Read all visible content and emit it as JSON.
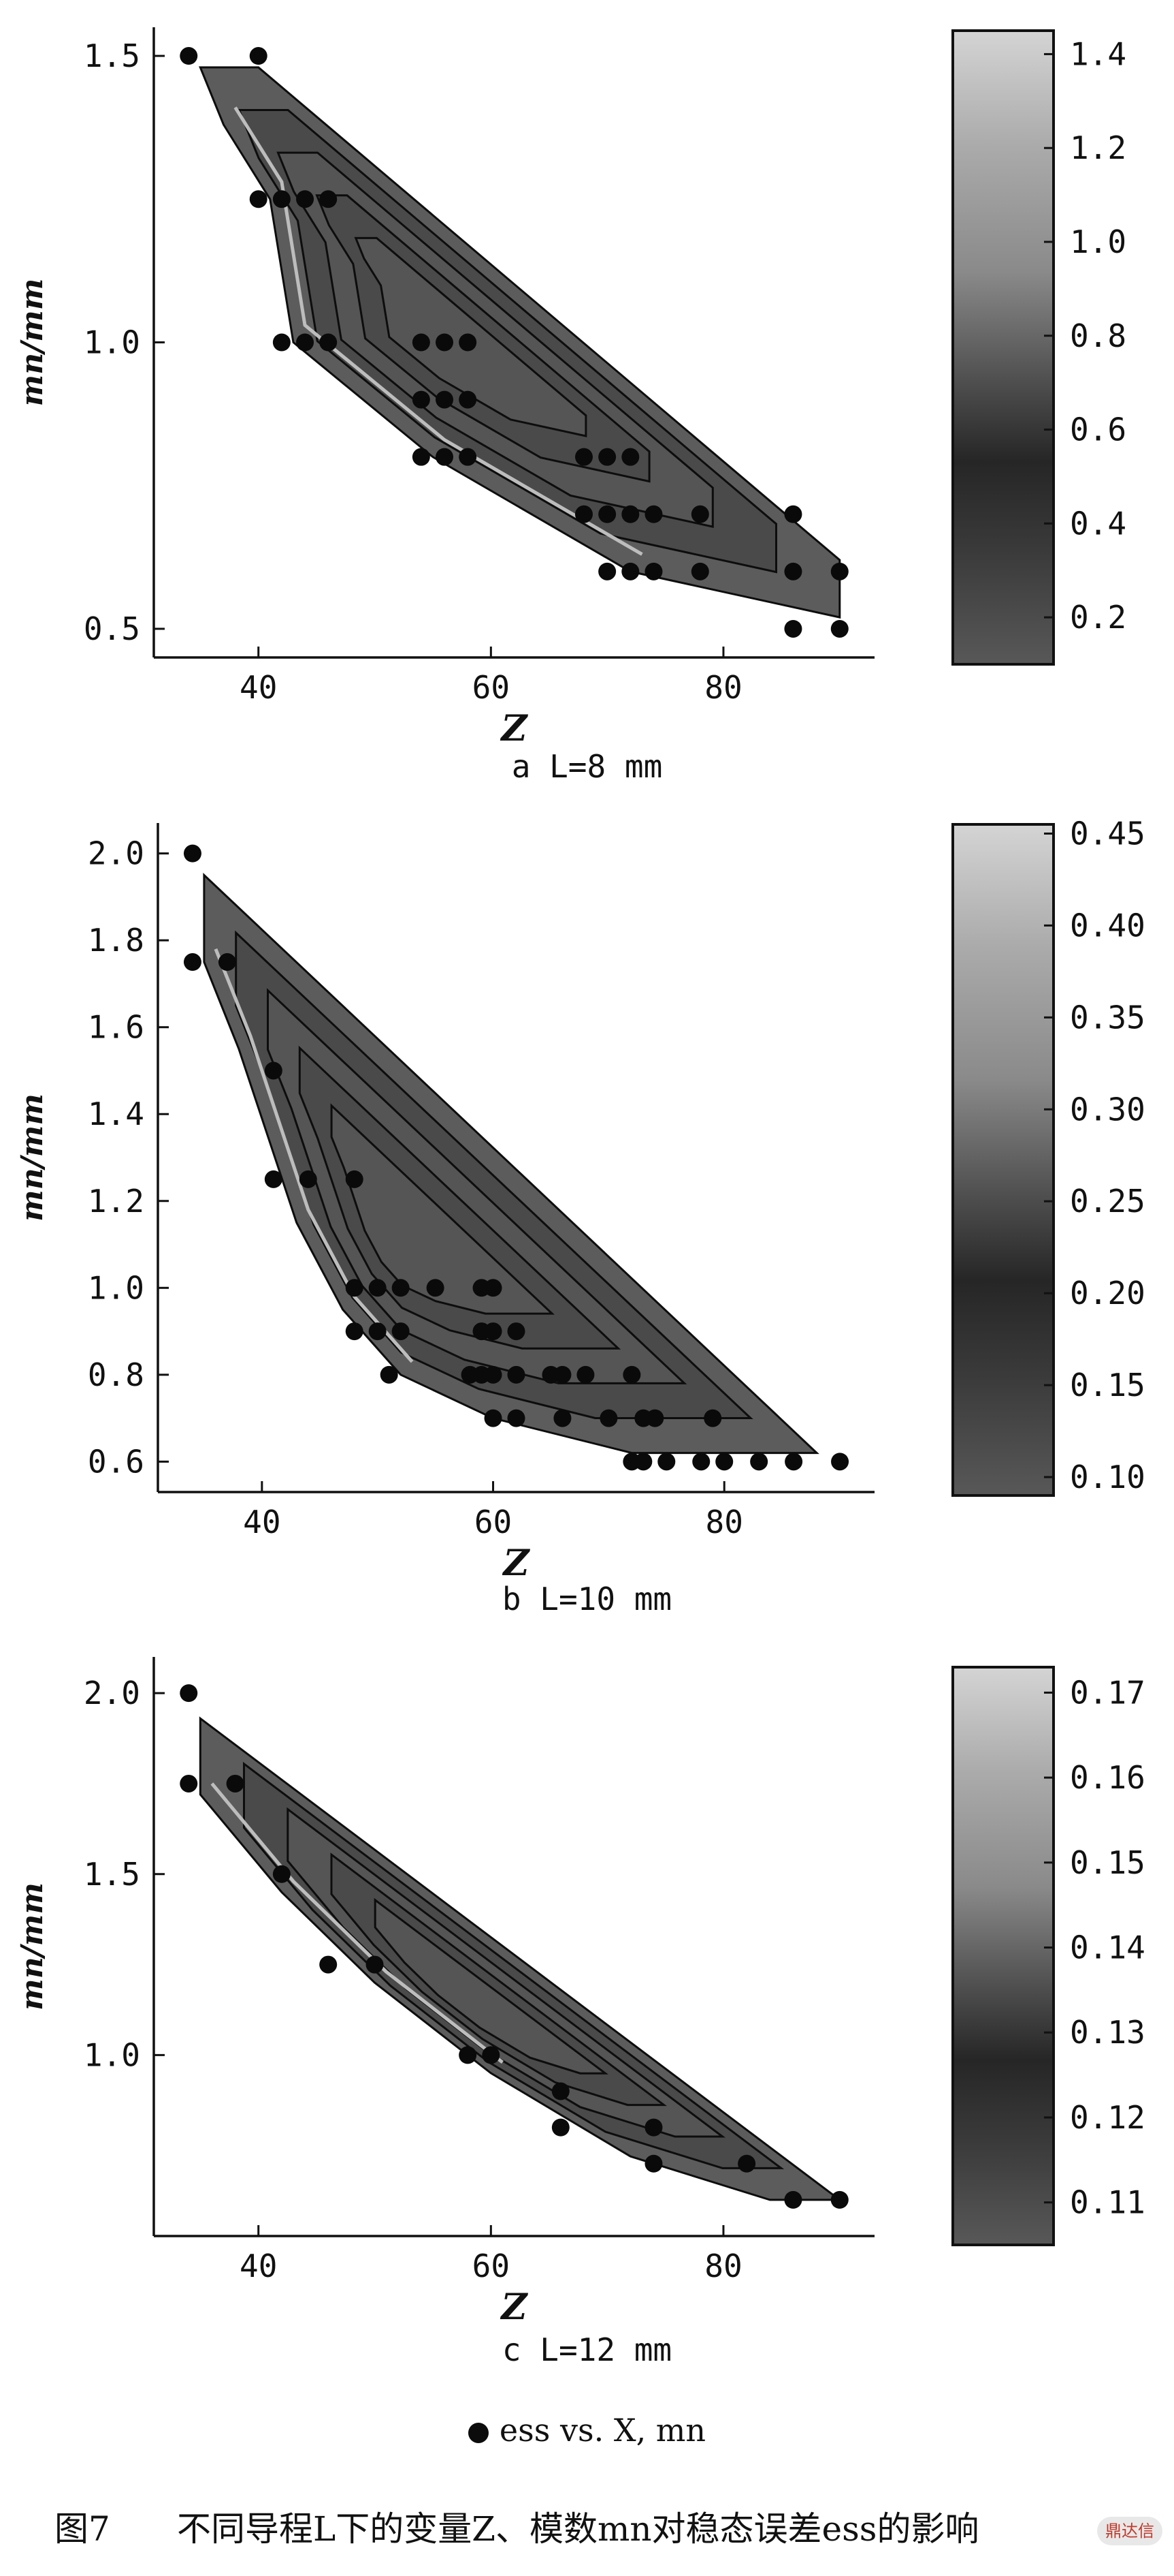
{
  "chart_data": [
    {
      "type": "contour",
      "panel": "a",
      "caption": "a L=8 mm",
      "xlabel": "Z",
      "ylabel": "mn/mm",
      "x_ticks": [
        "40",
        "60",
        "80"
      ],
      "y_ticks": [
        "0.5",
        "1.0",
        "1.5"
      ],
      "xlim": [
        31,
        93
      ],
      "ylim": [
        0.45,
        1.55
      ],
      "colorbar_ticks": [
        "0.2",
        "0.4",
        "0.6",
        "0.8",
        "1.0",
        "1.2",
        "1.4"
      ],
      "colorbar_range": [
        0.1,
        1.45
      ],
      "region": [
        [
          35,
          1.48
        ],
        [
          40,
          1.48
        ],
        [
          90,
          0.62
        ],
        [
          90,
          0.52
        ],
        [
          72,
          0.6
        ],
        [
          55,
          0.8
        ],
        [
          43,
          1.0
        ],
        [
          41,
          1.25
        ],
        [
          37,
          1.38
        ]
      ],
      "points": [
        [
          34,
          1.5
        ],
        [
          40,
          1.5
        ],
        [
          40,
          1.25
        ],
        [
          42,
          1.25
        ],
        [
          44,
          1.25
        ],
        [
          46,
          1.25
        ],
        [
          42,
          1.0
        ],
        [
          44,
          1.0
        ],
        [
          46,
          1.0
        ],
        [
          54,
          1.0
        ],
        [
          56,
          1.0
        ],
        [
          58,
          1.0
        ],
        [
          54,
          0.9
        ],
        [
          56,
          0.9
        ],
        [
          58,
          0.9
        ],
        [
          54,
          0.8
        ],
        [
          56,
          0.8
        ],
        [
          58,
          0.8
        ],
        [
          68,
          0.8
        ],
        [
          70,
          0.8
        ],
        [
          72,
          0.8
        ],
        [
          68,
          0.7
        ],
        [
          70,
          0.7
        ],
        [
          72,
          0.7
        ],
        [
          74,
          0.7
        ],
        [
          78,
          0.7
        ],
        [
          86,
          0.7
        ],
        [
          70,
          0.6
        ],
        [
          72,
          0.6
        ],
        [
          74,
          0.6
        ],
        [
          78,
          0.6
        ],
        [
          86,
          0.6
        ],
        [
          90,
          0.6
        ],
        [
          86,
          0.5
        ],
        [
          90,
          0.5
        ]
      ]
    },
    {
      "type": "contour",
      "panel": "b",
      "caption": "b L=10 mm",
      "xlabel": "Z",
      "ylabel": "mn/mm",
      "x_ticks": [
        "40",
        "60",
        "80"
      ],
      "y_ticks": [
        "0.6",
        "0.8",
        "1.0",
        "1.2",
        "1.4",
        "1.6",
        "1.8",
        "2.0"
      ],
      "xlim": [
        31,
        93
      ],
      "ylim": [
        0.53,
        2.07
      ],
      "colorbar_ticks": [
        "0.10",
        "0.15",
        "0.20",
        "0.25",
        "0.30",
        "0.35",
        "0.40",
        "0.45"
      ],
      "colorbar_range": [
        0.09,
        0.455
      ],
      "region": [
        [
          35,
          1.95
        ],
        [
          88,
          0.62
        ],
        [
          72,
          0.62
        ],
        [
          60,
          0.7
        ],
        [
          52,
          0.8
        ],
        [
          47,
          0.95
        ],
        [
          43,
          1.15
        ],
        [
          38,
          1.55
        ],
        [
          35,
          1.75
        ]
      ],
      "points": [
        [
          34,
          2.0
        ],
        [
          34,
          1.75
        ],
        [
          37,
          1.75
        ],
        [
          41,
          1.5
        ],
        [
          41,
          1.25
        ],
        [
          44,
          1.25
        ],
        [
          48,
          1.25
        ],
        [
          48,
          1.0
        ],
        [
          50,
          1.0
        ],
        [
          52,
          1.0
        ],
        [
          55,
          1.0
        ],
        [
          59,
          1.0
        ],
        [
          60,
          1.0
        ],
        [
          48,
          0.9
        ],
        [
          50,
          0.9
        ],
        [
          52,
          0.9
        ],
        [
          59,
          0.9
        ],
        [
          60,
          0.9
        ],
        [
          62,
          0.9
        ],
        [
          51,
          0.8
        ],
        [
          58,
          0.8
        ],
        [
          59,
          0.8
        ],
        [
          60,
          0.8
        ],
        [
          62,
          0.8
        ],
        [
          65,
          0.8
        ],
        [
          66,
          0.8
        ],
        [
          68,
          0.8
        ],
        [
          72,
          0.8
        ],
        [
          60,
          0.7
        ],
        [
          62,
          0.7
        ],
        [
          66,
          0.7
        ],
        [
          70,
          0.7
        ],
        [
          73,
          0.7
        ],
        [
          74,
          0.7
        ],
        [
          79,
          0.7
        ],
        [
          72,
          0.6
        ],
        [
          73,
          0.6
        ],
        [
          75,
          0.6
        ],
        [
          78,
          0.6
        ],
        [
          80,
          0.6
        ],
        [
          83,
          0.6
        ],
        [
          86,
          0.6
        ],
        [
          90,
          0.6
        ]
      ]
    },
    {
      "type": "contour",
      "panel": "c",
      "caption": "c L=12 mm",
      "xlabel": "Z",
      "ylabel": "mn/mm",
      "x_ticks": [
        "40",
        "60",
        "80"
      ],
      "y_ticks": [
        "1.0",
        "1.5",
        "2.0"
      ],
      "xlim": [
        31,
        93
      ],
      "ylim": [
        0.5,
        2.1
      ],
      "colorbar_ticks": [
        "0.11",
        "0.12",
        "0.13",
        "0.14",
        "0.15",
        "0.16",
        "0.17"
      ],
      "colorbar_range": [
        0.105,
        0.173
      ],
      "region": [
        [
          35,
          1.93
        ],
        [
          90,
          0.6
        ],
        [
          84,
          0.6
        ],
        [
          72,
          0.72
        ],
        [
          60,
          0.95
        ],
        [
          50,
          1.2
        ],
        [
          42,
          1.45
        ],
        [
          35,
          1.72
        ]
      ],
      "points": [
        [
          34,
          2.0
        ],
        [
          34,
          1.75
        ],
        [
          38,
          1.75
        ],
        [
          42,
          1.5
        ],
        [
          46,
          1.25
        ],
        [
          50,
          1.25
        ],
        [
          58,
          1.0
        ],
        [
          60,
          1.0
        ],
        [
          66,
          0.9
        ],
        [
          66,
          0.8
        ],
        [
          74,
          0.8
        ],
        [
          74,
          0.7
        ],
        [
          82,
          0.7
        ],
        [
          86,
          0.6
        ],
        [
          90,
          0.6
        ]
      ]
    }
  ],
  "legend": {
    "series_label": "ess vs. X, mn"
  },
  "figure_caption": {
    "number": "图7",
    "text": "不同导程L下的变量Z、模数mn对稳态误差ess的影响"
  },
  "badge": "鼎达信"
}
